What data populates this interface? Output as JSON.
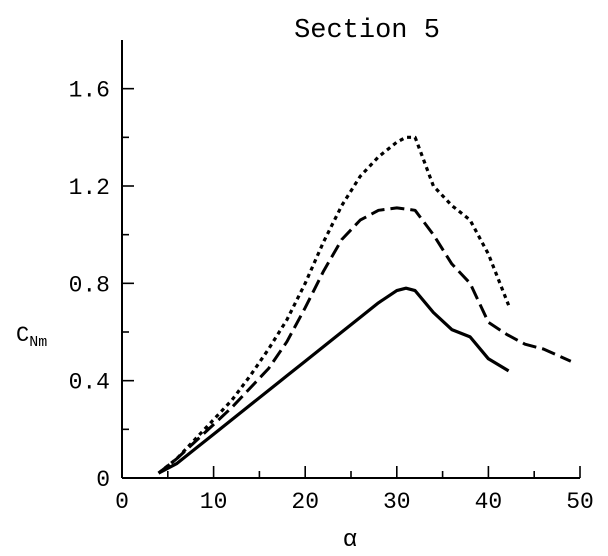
{
  "chart_data": {
    "type": "line",
    "title": "Section 5",
    "xlabel": "α",
    "ylabel_main": "C",
    "ylabel_sub": "Nm",
    "xlim": [
      0,
      50
    ],
    "ylim": [
      0,
      1.8
    ],
    "xticks": [
      0,
      10,
      20,
      30,
      40,
      50
    ],
    "xtick_labels": [
      "0",
      "10",
      "20",
      "30",
      "40",
      "50"
    ],
    "xminor_ticks": [
      5,
      15,
      25,
      35,
      45
    ],
    "yticks": [
      0,
      0.4,
      0.8,
      1.2,
      1.6
    ],
    "ytick_labels": [
      "0",
      "0.4",
      "0.8",
      "1.2",
      "1.6"
    ],
    "yminor_ticks": [
      0.2,
      0.6,
      1.0,
      1.4
    ],
    "grid": false,
    "series": [
      {
        "style": "solid",
        "color": "#000000",
        "x": [
          4,
          6,
          8,
          10,
          12,
          14,
          16,
          18,
          20,
          22,
          24,
          26,
          28,
          30,
          31,
          32,
          34,
          36,
          38,
          40,
          42.2
        ],
        "y": [
          0.02,
          0.06,
          0.12,
          0.18,
          0.24,
          0.3,
          0.36,
          0.42,
          0.48,
          0.54,
          0.6,
          0.66,
          0.72,
          0.77,
          0.78,
          0.77,
          0.68,
          0.61,
          0.58,
          0.49,
          0.44
        ]
      },
      {
        "style": "dashed",
        "color": "#000000",
        "x": [
          4,
          6,
          8,
          10,
          12,
          14,
          16,
          18,
          20,
          22,
          24,
          26,
          28,
          30,
          32,
          34,
          36,
          38,
          40,
          42,
          44,
          46,
          49
        ],
        "y": [
          0.02,
          0.08,
          0.15,
          0.22,
          0.29,
          0.37,
          0.45,
          0.56,
          0.7,
          0.85,
          0.98,
          1.06,
          1.1,
          1.11,
          1.1,
          1.0,
          0.88,
          0.8,
          0.64,
          0.59,
          0.55,
          0.53,
          0.48
        ]
      },
      {
        "style": "dotted",
        "color": "#000000",
        "x": [
          4,
          6,
          8,
          10,
          12,
          14,
          16,
          18,
          20,
          22,
          24,
          26,
          28,
          30,
          31,
          32,
          33,
          34,
          36,
          38,
          40,
          42.2
        ],
        "y": [
          0.02,
          0.08,
          0.16,
          0.24,
          0.32,
          0.42,
          0.53,
          0.65,
          0.8,
          0.97,
          1.12,
          1.24,
          1.32,
          1.38,
          1.4,
          1.4,
          1.3,
          1.2,
          1.12,
          1.06,
          0.92,
          0.71
        ]
      }
    ]
  }
}
